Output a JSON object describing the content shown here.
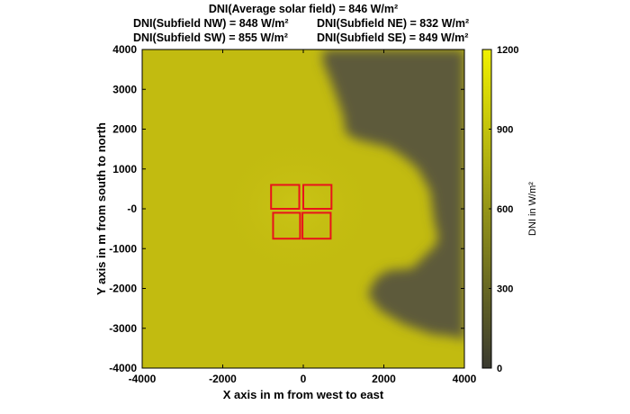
{
  "chart_data": {
    "type": "heatmap",
    "title_lines": [
      "DNI(Average solar field) = 846 W/m²",
      "DNI(Subfield NW) = 848 W/m²",
      "DNI(Subfield NE) = 832 W/m²",
      "DNI(Subfield SW) = 855 W/m²",
      "DNI(Subfield SE) = 849 W/m²"
    ],
    "xlabel": "X axis in m from west to east",
    "ylabel": "Y axis in m from south to north",
    "xlim": [
      -4000,
      4000
    ],
    "ylim": [
      -4000,
      4000
    ],
    "xticks": [
      -4000,
      -2000,
      0,
      2000,
      4000
    ],
    "xtick_labels": [
      "-4000",
      "-2000",
      "0",
      "2000",
      "4000"
    ],
    "yticks": [
      4000,
      3000,
      2000,
      1000,
      0,
      -1000,
      -2000,
      -3000,
      -4000
    ],
    "ytick_labels": [
      "4000",
      "3000",
      "2000",
      "1000",
      "-0",
      "-1000",
      "-2000",
      "-3000",
      "-4000"
    ],
    "colorbar": {
      "label": "DNI in W/m²",
      "range": [
        0,
        1200
      ],
      "ticks": [
        0,
        300,
        600,
        900,
        1200
      ],
      "tick_labels": [
        "0",
        "300",
        "600",
        "900",
        "1200"
      ],
      "colormap_low": "#3a3a30",
      "colormap_high": "#f0f000"
    },
    "field_colors": {
      "high_dni_region": "#c2bb10",
      "low_dni_region": "#5d5a3b",
      "subfield_outline": "#e8131b"
    },
    "regions": [
      {
        "name": "clear sky (high DNI)",
        "dni_approx": 850
      },
      {
        "name": "cloud shadow (low DNI, east)",
        "dni_approx": 350
      }
    ],
    "cloud_boundary_xy": [
      [
        4000,
        4000
      ],
      [
        500,
        4000
      ],
      [
        480,
        3700
      ],
      [
        650,
        3300
      ],
      [
        780,
        2950
      ],
      [
        900,
        2600
      ],
      [
        1000,
        2300
      ],
      [
        1050,
        1900
      ],
      [
        1300,
        1750
      ],
      [
        1700,
        1650
      ],
      [
        2100,
        1550
      ],
      [
        2500,
        1300
      ],
      [
        2850,
        1000
      ],
      [
        3150,
        450
      ],
      [
        3250,
        -300
      ],
      [
        3350,
        -700
      ],
      [
        3300,
        -900
      ],
      [
        3000,
        -1200
      ],
      [
        2700,
        -1500
      ],
      [
        2100,
        -1550
      ],
      [
        1800,
        -1750
      ],
      [
        1600,
        -2150
      ],
      [
        1900,
        -2550
      ],
      [
        2500,
        -2900
      ],
      [
        3200,
        -3150
      ],
      [
        3700,
        -3200
      ],
      [
        4000,
        -3300
      ]
    ],
    "subfields": [
      {
        "name": "NW",
        "x": [
          -800,
          -100
        ],
        "y": [
          0,
          600
        ]
      },
      {
        "name": "NE",
        "x": [
          0,
          700
        ],
        "y": [
          0,
          600
        ]
      },
      {
        "name": "SW",
        "x": [
          -750,
          -80
        ],
        "y": [
          -750,
          -100
        ]
      },
      {
        "name": "SE",
        "x": [
          -20,
          680
        ],
        "y": [
          -750,
          -100
        ]
      }
    ]
  }
}
